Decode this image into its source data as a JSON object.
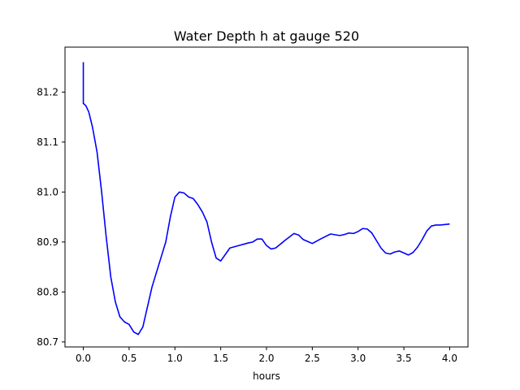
{
  "chart_data": {
    "type": "line",
    "title": "Water Depth h at gauge 520",
    "xlabel": "hours",
    "ylabel": "",
    "xlim": [
      -0.2,
      4.2
    ],
    "ylim": [
      80.69,
      81.29
    ],
    "x_ticks": [
      0.0,
      0.5,
      1.0,
      1.5,
      2.0,
      2.5,
      3.0,
      3.5,
      4.0
    ],
    "x_tick_labels": [
      "0.0",
      "0.5",
      "1.0",
      "1.5",
      "2.0",
      "2.5",
      "3.0",
      "3.5",
      "4.0"
    ],
    "y_ticks": [
      80.7,
      80.8,
      80.9,
      81.0,
      81.1,
      81.2
    ],
    "y_tick_labels": [
      "80.7",
      "80.8",
      "80.9",
      "81.0",
      "81.1",
      "81.2"
    ],
    "grid": false,
    "series": [
      {
        "color": "#0000ff",
        "x": [
          0.0,
          0.0,
          0.01,
          0.03,
          0.06,
          0.1,
          0.15,
          0.2,
          0.25,
          0.3,
          0.35,
          0.4,
          0.45,
          0.5,
          0.55,
          0.6,
          0.65,
          0.7,
          0.75,
          0.8,
          0.85,
          0.9,
          0.95,
          1.0,
          1.05,
          1.1,
          1.15,
          1.2,
          1.25,
          1.3,
          1.35,
          1.4,
          1.45,
          1.5,
          1.55,
          1.6,
          1.7,
          1.8,
          1.85,
          1.9,
          1.95,
          2.0,
          2.05,
          2.1,
          2.2,
          2.3,
          2.35,
          2.4,
          2.5,
          2.6,
          2.7,
          2.8,
          2.85,
          2.9,
          2.95,
          3.0,
          3.05,
          3.1,
          3.15,
          3.2,
          3.25,
          3.3,
          3.35,
          3.4,
          3.45,
          3.5,
          3.55,
          3.6,
          3.65,
          3.7,
          3.75,
          3.8,
          3.85,
          3.9,
          3.95,
          4.0
        ],
        "y": [
          81.26,
          81.177,
          81.176,
          81.172,
          81.16,
          81.13,
          81.08,
          81.0,
          80.91,
          80.83,
          80.78,
          80.75,
          80.74,
          80.735,
          80.72,
          80.715,
          80.73,
          80.77,
          80.81,
          80.84,
          80.87,
          80.9,
          80.95,
          80.99,
          81.0,
          80.998,
          80.99,
          80.987,
          80.975,
          80.96,
          80.94,
          80.9,
          80.868,
          80.862,
          80.875,
          80.888,
          80.893,
          80.898,
          80.9,
          80.906,
          80.906,
          80.893,
          80.886,
          80.888,
          80.903,
          80.917,
          80.914,
          80.905,
          80.897,
          80.907,
          80.916,
          80.913,
          80.915,
          80.918,
          80.917,
          80.921,
          80.927,
          80.926,
          80.918,
          80.903,
          80.888,
          80.878,
          80.876,
          80.88,
          80.882,
          80.878,
          80.874,
          80.879,
          80.89,
          80.905,
          80.922,
          80.932,
          80.934,
          80.934,
          80.935,
          80.936
        ]
      }
    ]
  }
}
